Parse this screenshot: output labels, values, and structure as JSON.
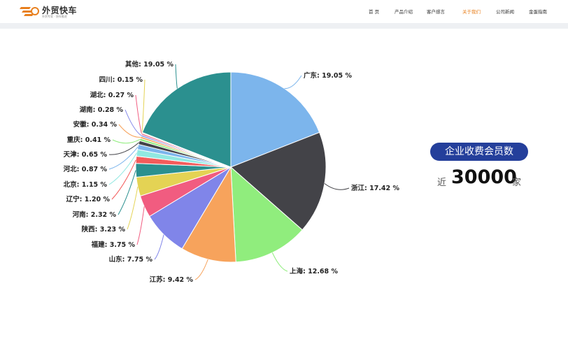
{
  "header": {
    "logo_title": "外贸快车",
    "logo_sub": "外贸专家 · 快车推进",
    "nav": [
      "首 页",
      "产品介绍",
      "客户感言",
      "关于我们",
      "公司新闻",
      "金蛋指南"
    ],
    "active_index": 3,
    "accent_color": "#e8801f"
  },
  "stats": {
    "badge_label": "企业收费会员数",
    "prefix": "近",
    "number": "30000",
    "unit": "家",
    "badge_color": "#243f9b"
  },
  "chart_data": {
    "type": "pie",
    "start_angle_deg": 0,
    "direction": "clockwise",
    "slices": [
      {
        "name": "广东",
        "value": 19.05,
        "label": "广东: 19.05 %",
        "color": "#7cb5ec"
      },
      {
        "name": "浙江",
        "value": 17.42,
        "label": "浙江: 17.42 %",
        "color": "#434348"
      },
      {
        "name": "上海",
        "value": 12.68,
        "label": "上海: 12.68 %",
        "color": "#90ed7d"
      },
      {
        "name": "江苏",
        "value": 9.42,
        "label": "江苏: 9.42 %",
        "color": "#f7a35c"
      },
      {
        "name": "山东",
        "value": 7.75,
        "label": "山东: 7.75 %",
        "color": "#8085e9"
      },
      {
        "name": "福建",
        "value": 3.75,
        "label": "福建: 3.75 %",
        "color": "#f15c80"
      },
      {
        "name": "陕西",
        "value": 3.23,
        "label": "陕西: 3.23 %",
        "color": "#e4d354"
      },
      {
        "name": "河南",
        "value": 2.32,
        "label": "河南: 2.32 %",
        "color": "#2b908f"
      },
      {
        "name": "辽宁",
        "value": 1.2,
        "label": "辽宁: 1.20 %",
        "color": "#f45b5b"
      },
      {
        "name": "北京",
        "value": 1.15,
        "label": "北京: 1.15 %",
        "color": "#91e8e1"
      },
      {
        "name": "河北",
        "value": 0.87,
        "label": "河北: 0.87 %",
        "color": "#7cb5ec"
      },
      {
        "name": "天津",
        "value": 0.65,
        "label": "天津: 0.65 %",
        "color": "#434348"
      },
      {
        "name": "重庆",
        "value": 0.41,
        "label": "重庆: 0.41 %",
        "color": "#90ed7d"
      },
      {
        "name": "安徽",
        "value": 0.34,
        "label": "安徽: 0.34 %",
        "color": "#f7a35c"
      },
      {
        "name": "湖南",
        "value": 0.28,
        "label": "湖南: 0.28 %",
        "color": "#8085e9"
      },
      {
        "name": "湖北",
        "value": 0.27,
        "label": "湖北: 0.27 %",
        "color": "#f15c80"
      },
      {
        "name": "四川",
        "value": 0.15,
        "label": "四川: 0.15 %",
        "color": "#e4d354"
      },
      {
        "name": "其他",
        "value": 19.05,
        "label": "其他: 19.05 %",
        "color": "#2b908f"
      }
    ]
  }
}
